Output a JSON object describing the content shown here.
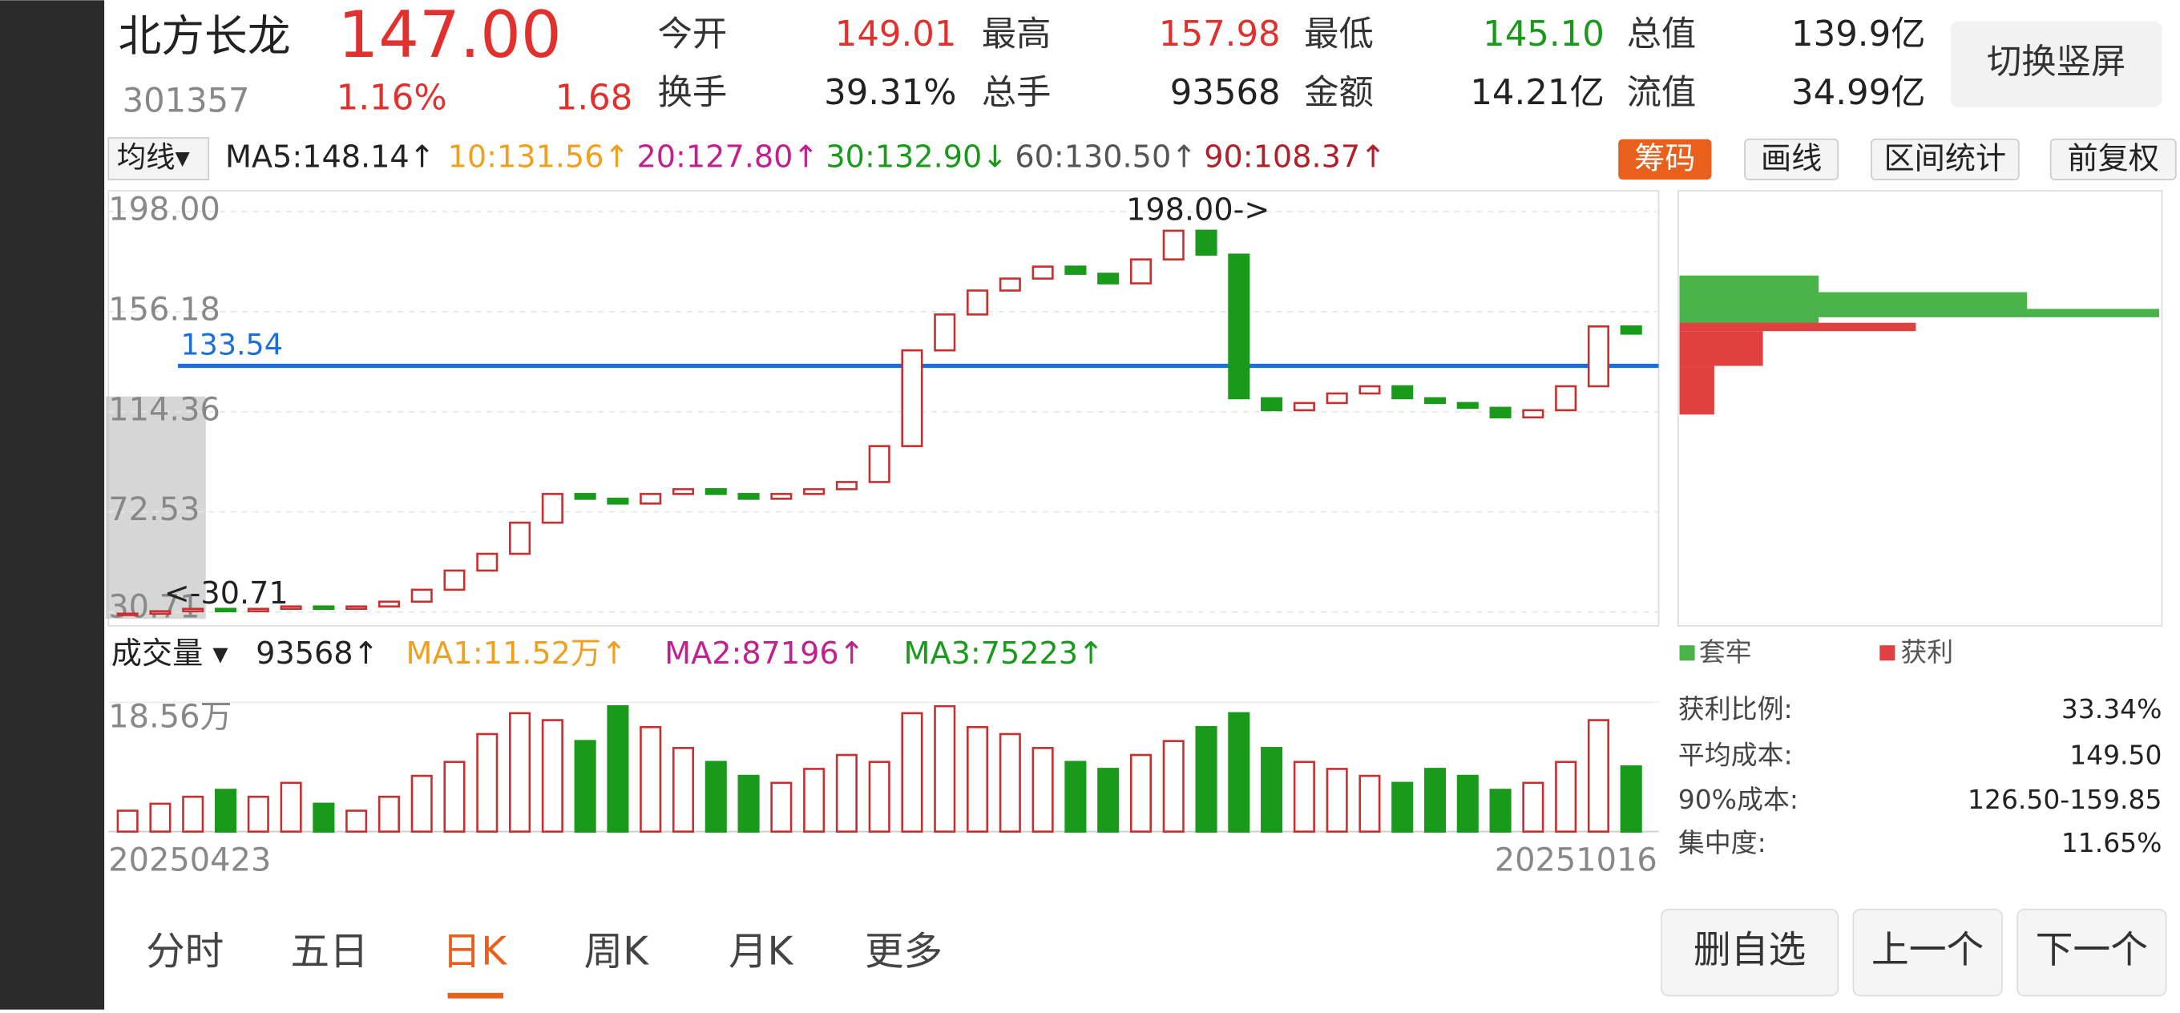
{
  "header": {
    "name": "北方长龙",
    "price": "147.00",
    "code": "301357",
    "change_pct": "1.16%",
    "change": "1.68",
    "stats": [
      {
        "label": "今开",
        "value": "149.01"
      },
      {
        "label": "最高",
        "value": "157.98"
      },
      {
        "label": "最低",
        "value": "145.10"
      },
      {
        "label": "总值",
        "value": "139.9亿"
      },
      {
        "label": "换手",
        "value": "39.31%"
      },
      {
        "label": "总手",
        "value": "93568"
      },
      {
        "label": "金额",
        "value": "14.21亿"
      },
      {
        "label": "流值",
        "value": "34.99亿"
      }
    ],
    "button": "切换竖屏"
  },
  "ma_row": {
    "selector": "均线▾",
    "items": [
      "MA5:148.14↑",
      "10:131.56↑",
      "20:127.80↑",
      "30:132.90↓",
      "60:130.50↑",
      "90:108.37↑"
    ],
    "buttons": [
      "筹码",
      "画线",
      "区间统计",
      "前复权"
    ]
  },
  "price_chart": {
    "ylim": [
      30.71,
      198
    ],
    "yticks": [
      {
        "value": 198,
        "label": "198.00"
      },
      {
        "value": 156.18,
        "label": "156.18"
      },
      {
        "value": 114.36,
        "label": "114.36"
      },
      {
        "value": 72.53,
        "label": "72.53"
      },
      {
        "value": 30.71,
        "label": "30.71"
      }
    ],
    "high_note": "198.00->",
    "low_note": "<-30.71",
    "hline": {
      "value": 133.54,
      "label": "133.54"
    },
    "closes": [
      30,
      31,
      32,
      31,
      32,
      33,
      32,
      33,
      35,
      40,
      48,
      55,
      68,
      80,
      78,
      76,
      80,
      82,
      80,
      78,
      80,
      82,
      85,
      100,
      140,
      155,
      165,
      170,
      175,
      172,
      168,
      178,
      190,
      180,
      120,
      115,
      118,
      122,
      125,
      120,
      118,
      116,
      112,
      115,
      125,
      150,
      147
    ]
  },
  "volume_row": {
    "selector": "成交量 ▾",
    "items": [
      "93568↑",
      "MA1:11.52万↑",
      "MA2:87196↑",
      "MA3:75223↑"
    ]
  },
  "volume_chart": {
    "ylim": [
      0,
      18.56
    ],
    "top_label": "18.56万",
    "start_date": "20250423",
    "end_date": "20251016",
    "values": [
      3,
      4,
      5,
      6,
      5,
      7,
      4,
      3,
      5,
      8,
      10,
      14,
      17,
      16,
      13,
      18,
      15,
      12,
      10,
      8,
      7,
      9,
      11,
      10,
      17,
      18,
      15,
      14,
      12,
      10,
      9,
      11,
      13,
      15,
      17,
      12,
      10,
      9,
      8,
      7,
      9,
      8,
      6,
      7,
      10,
      16,
      9.36
    ]
  },
  "chips": {
    "legend": [
      "套牢",
      "获利"
    ],
    "stats": [
      {
        "label": "获利比例:",
        "value": "33.34%"
      },
      {
        "label": "平均成本:",
        "value": "149.50"
      },
      {
        "label": "90%成本:",
        "value": "126.50-159.85"
      },
      {
        "label": "集中度:",
        "value": "11.65%"
      }
    ]
  },
  "tabs": [
    "分时",
    "五日",
    "日K",
    "周K",
    "月K",
    "更多"
  ],
  "nav_buttons": [
    "删自选",
    "上一个",
    "下一个"
  ]
}
